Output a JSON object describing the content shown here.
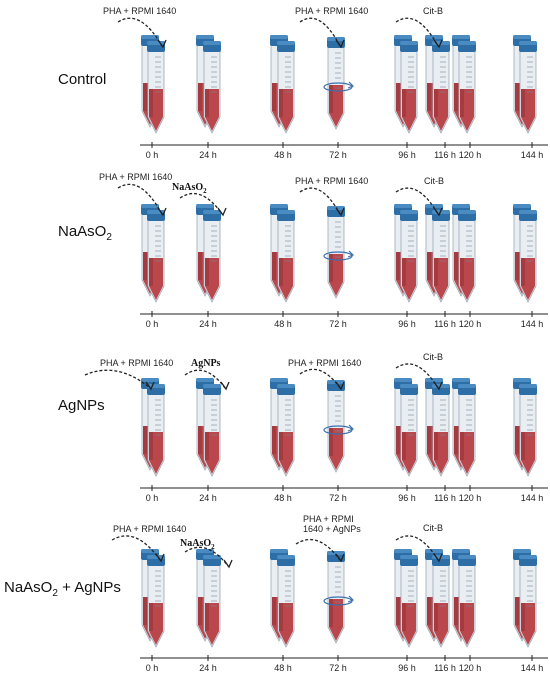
{
  "rows": [
    {
      "label": "Control",
      "label_sub": "",
      "label_rest": "",
      "annotations": [
        {
          "text": "PHA + RPMI 1640",
          "style": "sans"
        },
        {
          "text": "PHA + RPMI 1640",
          "style": "sans"
        },
        {
          "text": "Cit-B",
          "style": "sans"
        }
      ]
    },
    {
      "label": "NaAsO",
      "label_sub": "2",
      "label_rest": "",
      "annotations": [
        {
          "text": "PHA + RPMI 1640",
          "style": "sans"
        },
        {
          "text": "NaAsO",
          "sub": "2",
          "style": "serif"
        },
        {
          "text": "PHA + RPMI 1640",
          "style": "sans"
        },
        {
          "text": "Cit-B",
          "style": "sans"
        }
      ]
    },
    {
      "label": "AgNPs",
      "label_sub": "",
      "label_rest": "",
      "annotations": [
        {
          "text": "PHA + RPMI 1640",
          "style": "sans"
        },
        {
          "text": "AgNPs",
          "style": "serif"
        },
        {
          "text": "PHA + RPMI 1640",
          "style": "sans-large"
        },
        {
          "text": "Cit-B",
          "style": "sans"
        }
      ]
    },
    {
      "label": "NaAsO",
      "label_sub": "2",
      "label_rest": " + AgNPs",
      "annotations": [
        {
          "text": "PHA + RPMI 1640",
          "style": "sans"
        },
        {
          "text": "NaAsO",
          "sub": "2",
          "style": "serif"
        },
        {
          "text": "PHA + RPMI",
          "text2": "1640 + AgNPs",
          "style": "sans"
        },
        {
          "text": "Cit-B",
          "style": "sans"
        }
      ]
    }
  ],
  "timepoints": [
    "0 h",
    "24 h",
    "48 h",
    "72 h",
    "96 h",
    "116 h",
    "120 h",
    "144 h"
  ],
  "colors": {
    "tube_cap": "#2e6ea6",
    "tube_cap_top": "#4a8cc2",
    "tube_body": "#e9eef3",
    "medium": "#b9474c",
    "medium_dark": "#8f2f35",
    "arrow": "#222222",
    "rotate_arrow": "#3a6fb0",
    "axis": "#222222"
  },
  "icons": [
    "centrifuge-tube-icon",
    "dashed-curved-arrow-icon",
    "rotation-arrow-icon"
  ]
}
